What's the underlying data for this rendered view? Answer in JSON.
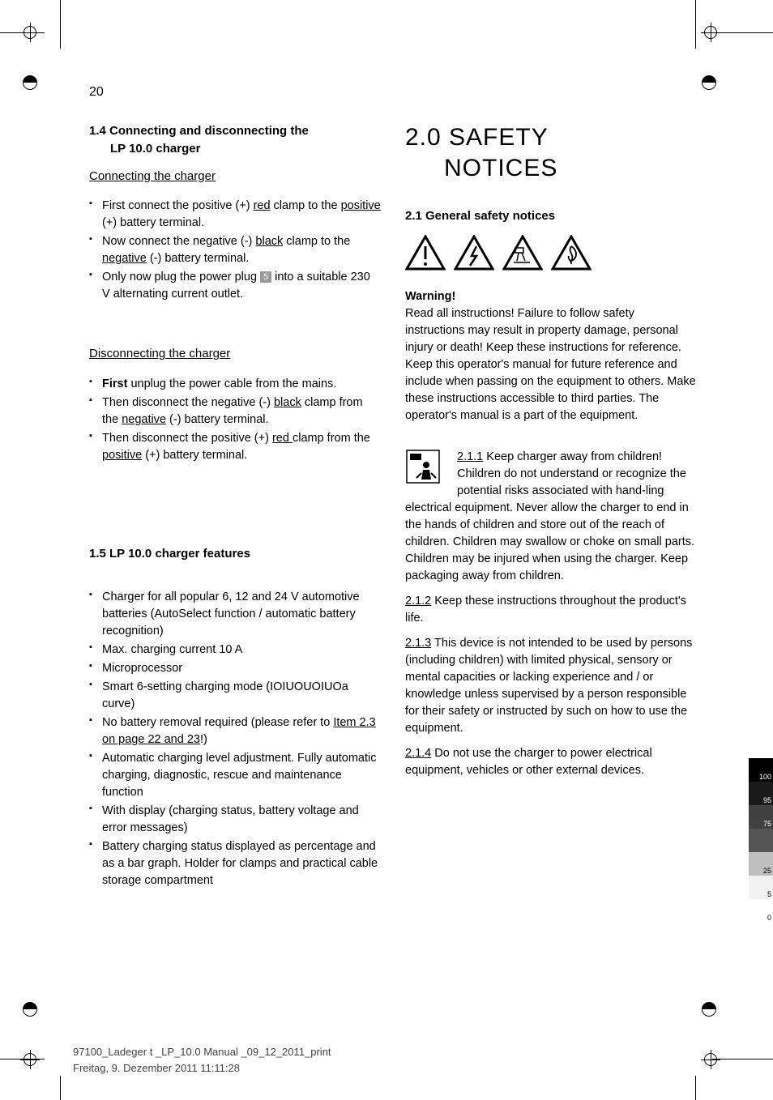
{
  "pageNumber": "20",
  "left": {
    "s14_title_a": "1.4 Connecting and disconnecting the",
    "s14_title_b": "LP 10.0 charger",
    "connecting_label": "Connecting the charger",
    "conn_bullets": {
      "b1a": "First connect the positive (+) ",
      "b1_red": "red",
      "b1b": " clamp to the ",
      "b1_pos": "positive",
      "b1c": " (+) battery terminal.",
      "b2a": "Now connect the negative (-) ",
      "b2_black": "black",
      "b2b": " clamp to the ",
      "b2_neg": "negative",
      "b2c": " (-) battery terminal.",
      "b3a": "Only now plug the power plug ",
      "b3_num": "5",
      "b3b": " into a suitable 230 V alternating current outlet."
    },
    "disconnecting_label": "Disconnecting the charger",
    "disc_bullets": {
      "b1_first": "First",
      "b1a": " unplug the power cable from the mains.",
      "b2a": "Then disconnect the negative (-) ",
      "b2_black": "black",
      "b2b": " clamp from the ",
      "b2_neg": "negative",
      "b2c": " (-) battery terminal.",
      "b3a": "Then disconnect the positive (+) ",
      "b3_red": "red ",
      "b3b": "clamp from the ",
      "b3_pos": "positive",
      "b3c": " (+) battery terminal."
    },
    "s15_title": "1.5 LP 10.0 charger features",
    "feat": {
      "f1": "Charger for all popular 6, 12 and 24 V automotive batteries (AutoSelect function / automatic battery recognition)",
      "f2": "Max. charging current 10 A",
      "f3": "Microprocessor",
      "f4": "Smart 6-setting charging mode (IOIUOUOIUOa curve)",
      "f5a": "No battery removal required (please refer to ",
      "f5_link": "Item 2.3 on page 22 and 23",
      "f5b": "!)",
      "f6": "Automatic charging level adjustment. Fully automatic charging, diagnostic, rescue and maintenance function",
      "f7": "With display (charging status, battery voltage and error messages)",
      "f8": "Battery charging status displayed as percentage and as a bar graph. Holder for clamps and practical cable storage compartment"
    }
  },
  "right": {
    "main_title_a": "2.0 SAFETY",
    "main_title_b": "NOTICES",
    "s21_title": "2.1 General safety notices",
    "warning_label": "Warning!",
    "warning_body": "Read all instructions! Failure to follow safety instructions may result in property damage, personal injury or death! Keep these instructions for reference. Keep this operator's manual for future reference and include when passing on the equipment to others. Make these instructions accessible to third parties. The operator's manual is a part of the equipment.",
    "p211_num": "2.1.1",
    "p211": " Keep charger away from children! Children do not understand or recognize the potential risks associated with hand-ling electrical equipment. Never allow the charger to end in the hands of children and store out of the reach of children. Children may swallow or choke on small parts. Children may be injured when using the charger. Keep packaging away from children.",
    "p212_num": "2.1.2",
    "p212": " Keep these instructions throughout the product's life.",
    "p213_num": "2.1.3",
    "p213": " This device is not intended to be used by persons (including children) with limited physical, sensory or mental capacities or lacking experience and / or knowledge unless supervised by a person responsible for their safety or instructed by such on how to use the equipment.",
    "p214_num": "2.1.4",
    "p214": " Do not use the charger to power electrical equipment, vehicles or other external devices."
  },
  "colorbar": [
    {
      "color": "#000000",
      "label": "100",
      "light": true
    },
    {
      "color": "#1a1a1a",
      "label": "95",
      "light": true
    },
    {
      "color": "#404040",
      "label": "75",
      "light": true
    },
    {
      "color": "#555555",
      "label": "",
      "light": false
    },
    {
      "color": "#bfbfbf",
      "label": "25",
      "light": false
    },
    {
      "color": "#f2f2f2",
      "label": "5",
      "light": false
    },
    {
      "color": "#ffffff",
      "label": "0",
      "light": false
    }
  ],
  "footer": {
    "line1": "97100_Ladeger  t _LP_10.0 Manual _09_12_2011_print",
    "line2": "Freitag, 9. Dezember 2011 11:11:28"
  },
  "icons": {
    "tri1": "exclamation",
    "tri2": "lightning",
    "tri3": "corrosive",
    "tri4": "flame"
  }
}
